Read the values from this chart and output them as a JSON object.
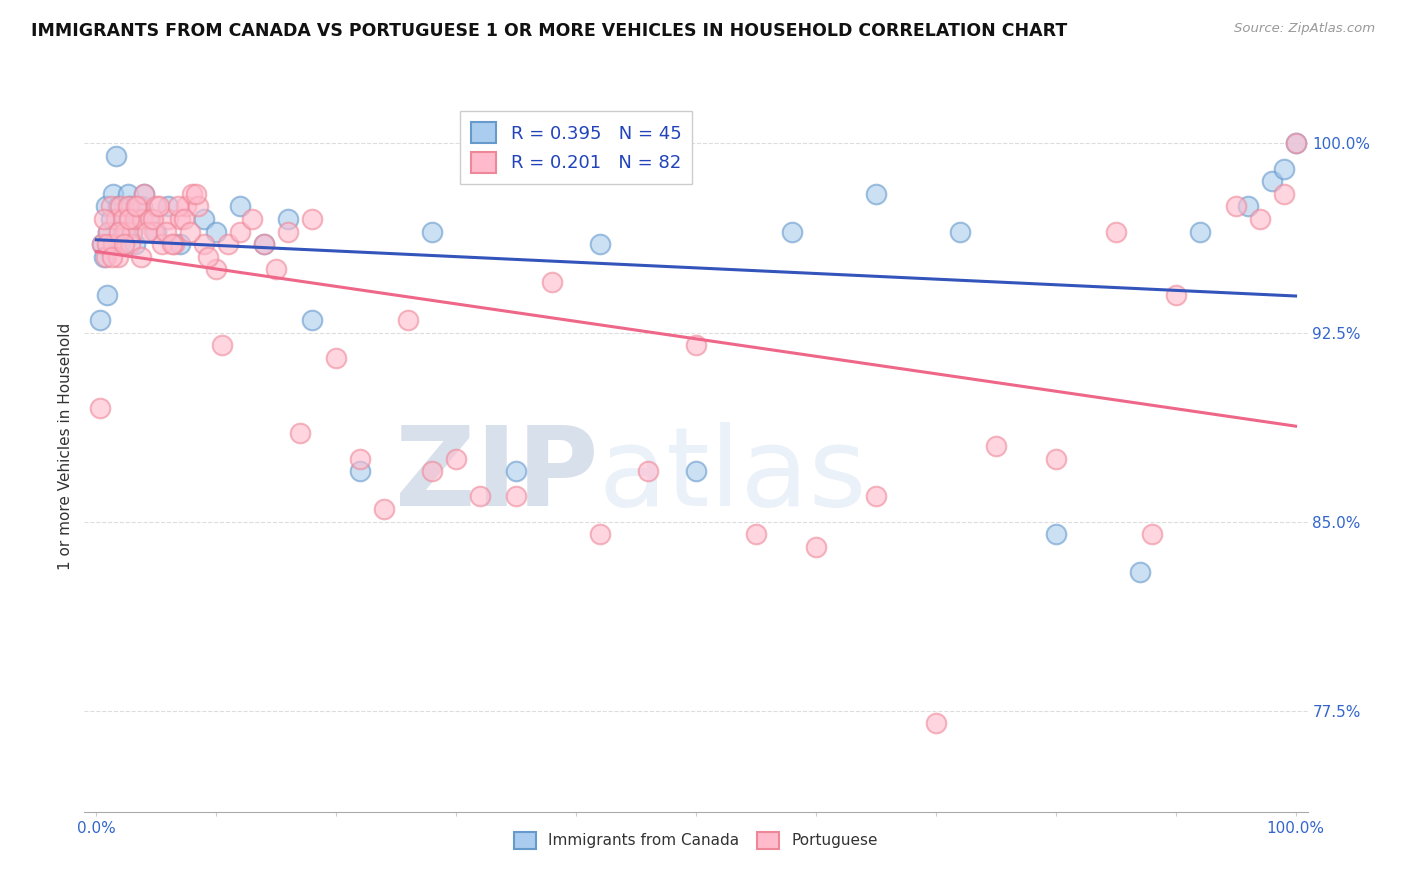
{
  "title": "IMMIGRANTS FROM CANADA VS PORTUGUESE 1 OR MORE VEHICLES IN HOUSEHOLD CORRELATION CHART",
  "source": "Source: ZipAtlas.com",
  "ylabel": "1 or more Vehicles in Household",
  "xlabel": "",
  "xlim": [
    -0.01,
    1.01
  ],
  "ylim": [
    0.735,
    1.025
  ],
  "yticks": [
    0.775,
    0.85,
    0.925,
    1.0
  ],
  "ytick_labels": [
    "77.5%",
    "85.0%",
    "92.5%",
    "100.0%"
  ],
  "xtick_positions": [
    0.0,
    0.1,
    0.2,
    0.3,
    0.4,
    0.5,
    0.6,
    0.7,
    0.8,
    0.9,
    1.0
  ],
  "xtick_labels": [
    "0.0%",
    "",
    "",
    "",
    "",
    "",
    "",
    "",
    "",
    "",
    "100.0%"
  ],
  "legend_labels": [
    "Immigrants from Canada",
    "Portuguese"
  ],
  "canada_R": 0.395,
  "canada_N": 45,
  "portuguese_R": 0.201,
  "portuguese_N": 82,
  "canada_color": "#6699CC",
  "portuguese_color": "#FF99AA",
  "canada_line_color": "#3355BB",
  "portuguese_line_color": "#EE6688",
  "grid_color": "#DDDDDD",
  "background_color": "#FFFFFF",
  "watermark_zip": "ZIP",
  "watermark_atlas": "atlas",
  "canada_x": [
    0.005,
    0.008,
    0.01,
    0.012,
    0.014,
    0.016,
    0.018,
    0.02,
    0.022,
    0.024,
    0.026,
    0.028,
    0.03,
    0.032,
    0.035,
    0.038,
    0.04,
    0.045,
    0.05,
    0.06,
    0.07,
    0.09,
    0.1,
    0.12,
    0.14,
    0.16,
    0.18,
    0.22,
    0.28,
    0.35,
    0.42,
    0.5,
    0.58,
    0.65,
    0.72,
    0.8,
    0.87,
    0.92,
    0.96,
    0.98,
    0.99,
    1.0,
    0.003,
    0.006,
    0.009
  ],
  "canada_y": [
    0.96,
    0.975,
    0.965,
    0.97,
    0.98,
    0.995,
    0.975,
    0.96,
    0.965,
    0.97,
    0.98,
    0.975,
    0.965,
    0.96,
    0.97,
    0.975,
    0.98,
    0.97,
    0.965,
    0.975,
    0.96,
    0.97,
    0.965,
    0.975,
    0.96,
    0.97,
    0.93,
    0.87,
    0.965,
    0.87,
    0.96,
    0.87,
    0.965,
    0.98,
    0.965,
    0.845,
    0.83,
    0.965,
    0.975,
    0.985,
    0.99,
    1.0,
    0.93,
    0.955,
    0.94
  ],
  "portuguese_x": [
    0.005,
    0.008,
    0.01,
    0.012,
    0.014,
    0.016,
    0.018,
    0.02,
    0.022,
    0.024,
    0.026,
    0.028,
    0.03,
    0.032,
    0.035,
    0.038,
    0.04,
    0.045,
    0.048,
    0.05,
    0.055,
    0.06,
    0.065,
    0.07,
    0.075,
    0.08,
    0.085,
    0.09,
    0.1,
    0.11,
    0.12,
    0.13,
    0.14,
    0.15,
    0.16,
    0.17,
    0.18,
    0.2,
    0.22,
    0.24,
    0.26,
    0.28,
    0.3,
    0.32,
    0.35,
    0.38,
    0.42,
    0.46,
    0.5,
    0.55,
    0.6,
    0.65,
    0.7,
    0.75,
    0.8,
    0.85,
    0.88,
    0.9,
    0.95,
    0.97,
    0.99,
    1.0,
    0.003,
    0.006,
    0.009,
    0.013,
    0.019,
    0.023,
    0.027,
    0.033,
    0.037,
    0.042,
    0.047,
    0.052,
    0.058,
    0.063,
    0.068,
    0.073,
    0.078,
    0.083,
    0.093,
    0.105
  ],
  "portuguese_y": [
    0.96,
    0.955,
    0.965,
    0.975,
    0.96,
    0.97,
    0.955,
    0.975,
    0.97,
    0.965,
    0.975,
    0.96,
    0.965,
    0.97,
    0.975,
    0.97,
    0.98,
    0.97,
    0.965,
    0.975,
    0.96,
    0.97,
    0.96,
    0.97,
    0.975,
    0.98,
    0.975,
    0.96,
    0.95,
    0.96,
    0.965,
    0.97,
    0.96,
    0.95,
    0.965,
    0.885,
    0.97,
    0.915,
    0.875,
    0.855,
    0.93,
    0.87,
    0.875,
    0.86,
    0.86,
    0.945,
    0.845,
    0.87,
    0.92,
    0.845,
    0.84,
    0.86,
    0.77,
    0.88,
    0.875,
    0.965,
    0.845,
    0.94,
    0.975,
    0.97,
    0.98,
    1.0,
    0.895,
    0.97,
    0.96,
    0.955,
    0.965,
    0.96,
    0.97,
    0.975,
    0.955,
    0.965,
    0.97,
    0.975,
    0.965,
    0.96,
    0.975,
    0.97,
    0.965,
    0.98,
    0.955,
    0.92
  ]
}
